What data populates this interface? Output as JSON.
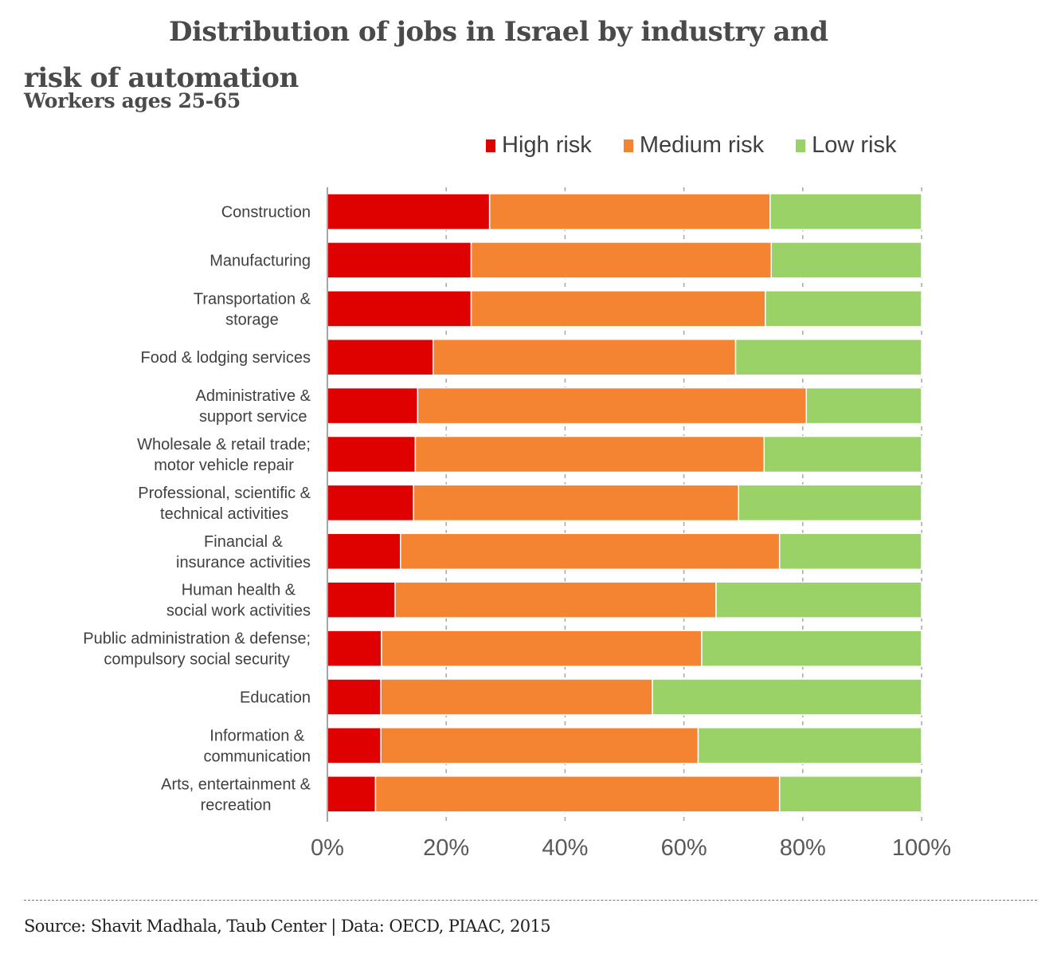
{
  "chart_data": {
    "type": "bar",
    "orientation": "horizontal",
    "stacked": true,
    "title": "Distribution of jobs in Israel by industry and risk of automation",
    "title_lines": [
      "Distribution of jobs in Israel by industry and",
      "risk of automation"
    ],
    "subtitle": "Workers ages 25-65",
    "xlabel": "",
    "ylabel": "",
    "xlim": [
      0,
      100
    ],
    "x_ticks": [
      0,
      20,
      40,
      60,
      80,
      100
    ],
    "x_tick_labels": [
      "0%",
      "20%",
      "40%",
      "60%",
      "80%",
      "100%"
    ],
    "grid": "vertical dashed",
    "legend_position": "top-right",
    "categories": [
      [
        "Construction"
      ],
      [
        "Manufacturing"
      ],
      [
        "Transportation &",
        "storage"
      ],
      [
        "Food & lodging services"
      ],
      [
        "Administrative &",
        "support service"
      ],
      [
        "Wholesale & retail trade;",
        "motor vehicle repair"
      ],
      [
        "Professional, scientific &",
        "technical activities"
      ],
      [
        "Financial &",
        "insurance activities"
      ],
      [
        "Human health &",
        "social work activities"
      ],
      [
        "Public administration & defense;",
        "compulsory social security"
      ],
      [
        "Education"
      ],
      [
        "Information &",
        "communication"
      ],
      [
        "Arts, entertainment &",
        "recreation"
      ]
    ],
    "series": [
      {
        "name": "High risk",
        "color": "#df0000",
        "values": [
          27.3,
          24.2,
          24.2,
          17.8,
          15.2,
          14.8,
          14.5,
          12.3,
          11.4,
          9.1,
          9.0,
          9.0,
          8.1
        ]
      },
      {
        "name": "Medium risk",
        "color": "#f58432",
        "values": [
          47.2,
          50.5,
          49.5,
          50.9,
          65.4,
          58.7,
          54.7,
          63.8,
          54.0,
          53.9,
          45.7,
          53.4,
          68.0
        ]
      },
      {
        "name": "Low risk",
        "color": "#9ad267",
        "values": [
          25.5,
          25.3,
          26.3,
          31.3,
          19.4,
          26.5,
          30.8,
          23.9,
          34.6,
          37.0,
          45.3,
          37.6,
          23.9
        ]
      }
    ]
  },
  "source": "Source: Shavit Madhala, Taub Center | Data: OECD, PIAAC, 2015"
}
